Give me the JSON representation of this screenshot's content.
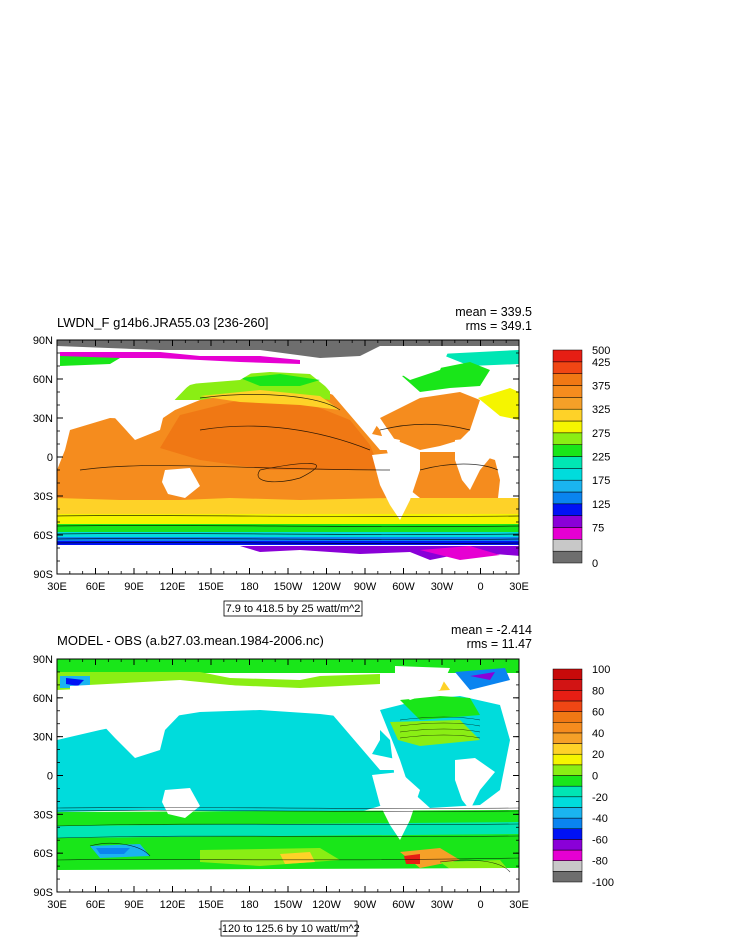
{
  "panels": [
    {
      "title": "LWDN_F g14b6.JRA55.03 [236-260]",
      "mean": "mean = 339.5",
      "rms": "rms = 349.1",
      "info": "7.9 to 418.5 by 25 watt/m^2",
      "lat_ticks": [
        "90N",
        "60N",
        "30N",
        "0",
        "30S",
        "60S",
        "90S"
      ],
      "lon_ticks": [
        "30E",
        "60E",
        "90E",
        "120E",
        "150E",
        "180",
        "150W",
        "120W",
        "90W",
        "60W",
        "30W",
        "0",
        "30E"
      ],
      "colorbar_labels": [
        {
          "text": "500",
          "level": 16
        },
        {
          "text": "425",
          "level": 13
        },
        {
          "text": "375",
          "level": 11
        },
        {
          "text": "325",
          "level": 9
        },
        {
          "text": "275",
          "level": 7
        },
        {
          "text": "225",
          "level": 5
        },
        {
          "text": "175",
          "level": 3
        },
        {
          "text": "125",
          "level": 1
        },
        {
          "text": "75",
          "level": -1
        },
        {
          "text": "0",
          "level": -4
        }
      ],
      "colors": [
        "#6e6e6e",
        "#c8c8c8",
        "#e600d2",
        "#8a00d8",
        "#0012f5",
        "#0a84f0",
        "#1ab4f0",
        "#00dcdc",
        "#00e6b4",
        "#19e619",
        "#8aee14",
        "#f5f500",
        "#fed228",
        "#f5a028",
        "#f58c1e",
        "#f07814",
        "#f04614",
        "#e61e14"
      ],
      "colorbar_layout": {
        "top": 350,
        "bottom": 563
      }
    },
    {
      "title": "MODEL - OBS (a.b27.03.mean.1984-2006.nc)",
      "mean": "mean = -2.414",
      "rms": "rms = 11.47",
      "info": "-120 to 125.6 by 10 watt/m^2",
      "lat_ticks": [
        "90N",
        "60N",
        "30N",
        "0",
        "30S",
        "60S",
        "90S"
      ],
      "lon_ticks": [
        "30E",
        "60E",
        "90E",
        "120E",
        "150E",
        "180",
        "150W",
        "120W",
        "90W",
        "60W",
        "30W",
        "0",
        "30E"
      ],
      "colorbar_labels": [
        {
          "text": "100",
          "level": 18
        },
        {
          "text": "80",
          "level": 16
        },
        {
          "text": "60",
          "level": 14
        },
        {
          "text": "40",
          "level": 12
        },
        {
          "text": "20",
          "level": 10
        },
        {
          "text": "0",
          "level": 8
        },
        {
          "text": "-20",
          "level": 6
        },
        {
          "text": "-40",
          "level": 4
        },
        {
          "text": "-60",
          "level": 2
        },
        {
          "text": "-80",
          "level": 0
        },
        {
          "text": "-100",
          "level": -2
        }
      ],
      "colors": [
        "#6e6e6e",
        "#c8c8c8",
        "#e600d2",
        "#8a00d8",
        "#0012f5",
        "#0a84f0",
        "#1ab4f0",
        "#00dcdc",
        "#00e6b4",
        "#19e619",
        "#8aee14",
        "#f5f500",
        "#fed228",
        "#f5a028",
        "#f58c1e",
        "#f07814",
        "#f04614",
        "#e61e14",
        "#d21414",
        "#c80a0a"
      ],
      "colorbar_layout": {
        "top": 669,
        "bottom": 882
      }
    }
  ],
  "chart_data": [
    {
      "type": "heatmap",
      "title": "LWDN_F g14b6.JRA55.03 [236-260]",
      "stats": {
        "mean": 339.5,
        "rms": 349.1
      },
      "units": "watt/m^2",
      "range": [
        7.9,
        418.5
      ],
      "contour_interval": 25,
      "colorbar_levels": [
        0,
        75,
        125,
        175,
        225,
        275,
        325,
        375,
        425,
        500
      ],
      "xlim": [
        "30E",
        "30E"
      ],
      "ylim": [
        "90S",
        "90N"
      ]
    },
    {
      "type": "heatmap",
      "title": "MODEL - OBS (a.b27.03.mean.1984-2006.nc)",
      "stats": {
        "mean": -2.414,
        "rms": 11.47
      },
      "units": "watt/m^2",
      "range": [
        -120,
        125.6
      ],
      "contour_interval": 10,
      "colorbar_levels": [
        -100,
        -80,
        -60,
        -40,
        -20,
        0,
        20,
        40,
        60,
        80,
        100
      ],
      "xlim": [
        "30E",
        "30E"
      ],
      "ylim": [
        "90S",
        "90N"
      ]
    }
  ]
}
